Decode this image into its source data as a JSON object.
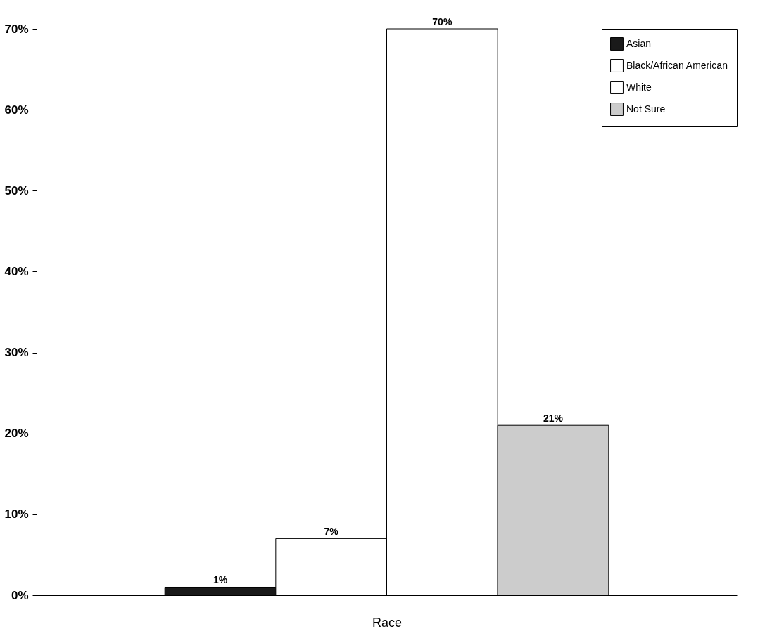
{
  "chart_data": {
    "type": "bar",
    "xlabel": "Race",
    "categories": [
      null
    ],
    "series": [
      {
        "name": "Asian",
        "color": "#1a1a1a",
        "values": [
          1
        ],
        "value_labels": [
          "1%"
        ]
      },
      {
        "name": "Black/African American",
        "color": "#ffffff",
        "values": [
          7
        ],
        "value_labels": [
          "7%"
        ]
      },
      {
        "name": "White",
        "color": "#ffffff",
        "values": [
          70
        ],
        "value_labels": [
          "70%"
        ]
      },
      {
        "name": "Not Sure",
        "color": "#cccccc",
        "values": [
          21
        ],
        "value_labels": [
          "21%"
        ]
      }
    ],
    "ylim": [
      0,
      70
    ],
    "yticks": [
      {
        "value": 0,
        "label": "0%"
      },
      {
        "value": 10,
        "label": "10%"
      },
      {
        "value": 20,
        "label": "20%"
      },
      {
        "value": 30,
        "label": "30%"
      },
      {
        "value": 40,
        "label": "40%"
      },
      {
        "value": 50,
        "label": "50%"
      },
      {
        "value": 60,
        "label": "60%"
      },
      {
        "value": 70,
        "label": "70%"
      }
    ],
    "grid": false,
    "legend": "top right"
  }
}
